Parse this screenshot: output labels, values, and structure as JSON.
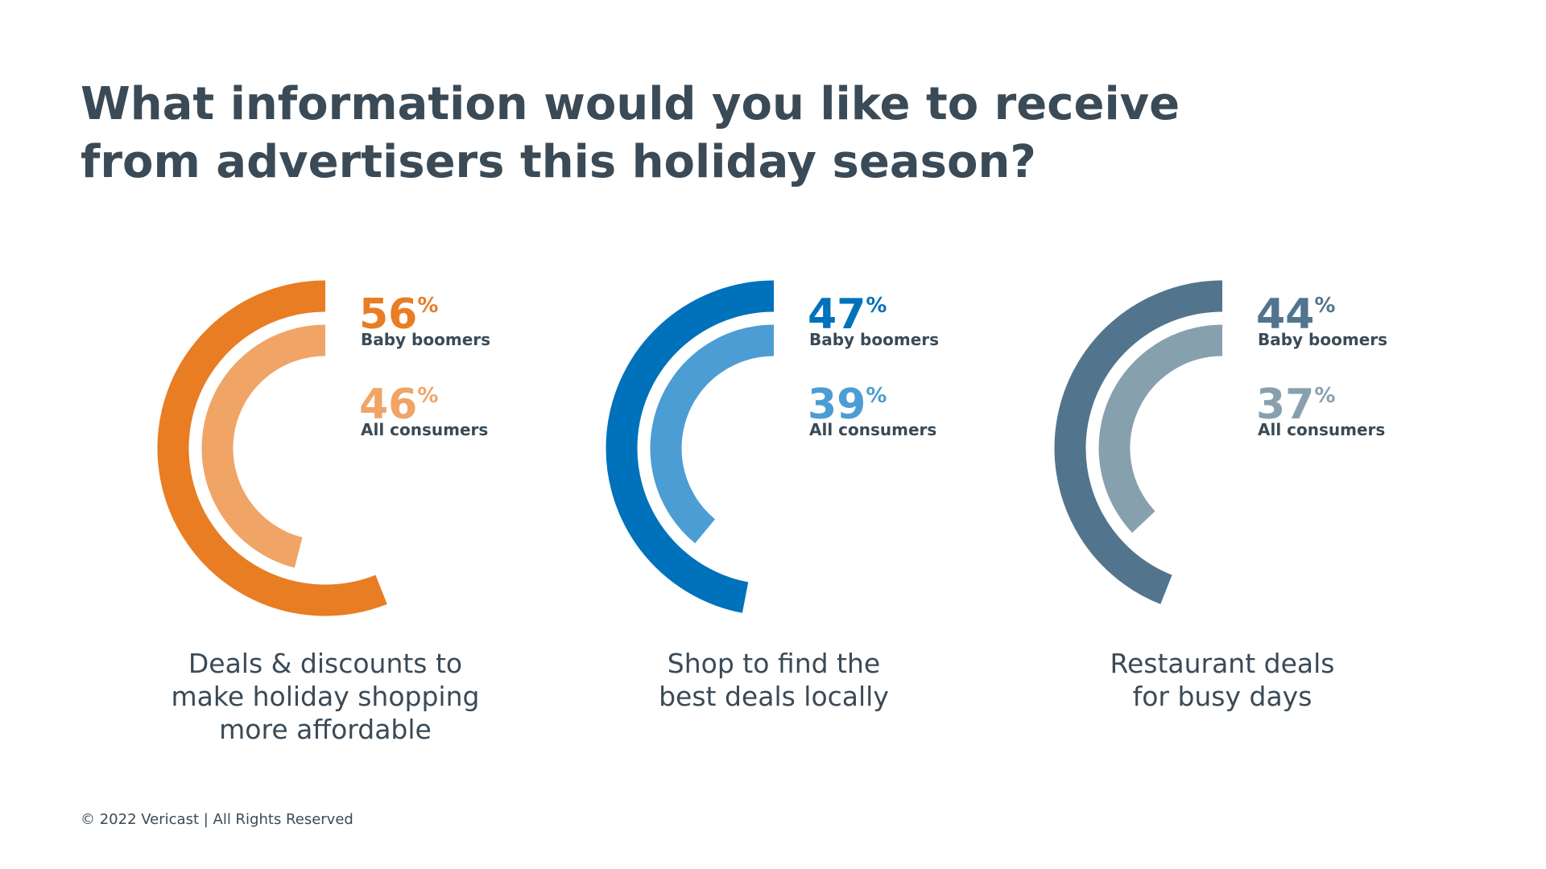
{
  "title": [
    "What information would you like to receive",
    "from advertisers this holiday season?"
  ],
  "footer": "© 2022 Vericast | All Rights Reserved",
  "chart_data": [
    {
      "type": "radial",
      "label": [
        "Deals & discounts to",
        "make holiday shopping",
        "more affordable"
      ],
      "series": [
        {
          "name": "Baby boomers",
          "color": "#e87d24",
          "values": [
            56
          ],
          "value_labels": [
            "56%"
          ]
        },
        {
          "name": "All consumers",
          "color": "#f0a466",
          "values": [
            46
          ],
          "value_labels": [
            "46%"
          ]
        }
      ]
    },
    {
      "type": "radial",
      "label": [
        "Shop to find the",
        "best deals locally"
      ],
      "series": [
        {
          "name": "Baby boomers",
          "color": "#0071bb",
          "values": [
            47
          ],
          "value_labels": [
            "47%"
          ]
        },
        {
          "name": "All consumers",
          "color": "#4b9dd3",
          "values": [
            39
          ],
          "value_labels": [
            "39%"
          ]
        }
      ]
    },
    {
      "type": "radial",
      "label": [
        "Restaurant deals",
        "for busy days"
      ],
      "series": [
        {
          "name": "Baby boomers",
          "color": "#52758d",
          "values": [
            44
          ],
          "value_labels": [
            "44%"
          ]
        },
        {
          "name": "All consumers",
          "color": "#87a0ae",
          "values": [
            37
          ],
          "value_labels": [
            "37%"
          ]
        }
      ]
    }
  ]
}
